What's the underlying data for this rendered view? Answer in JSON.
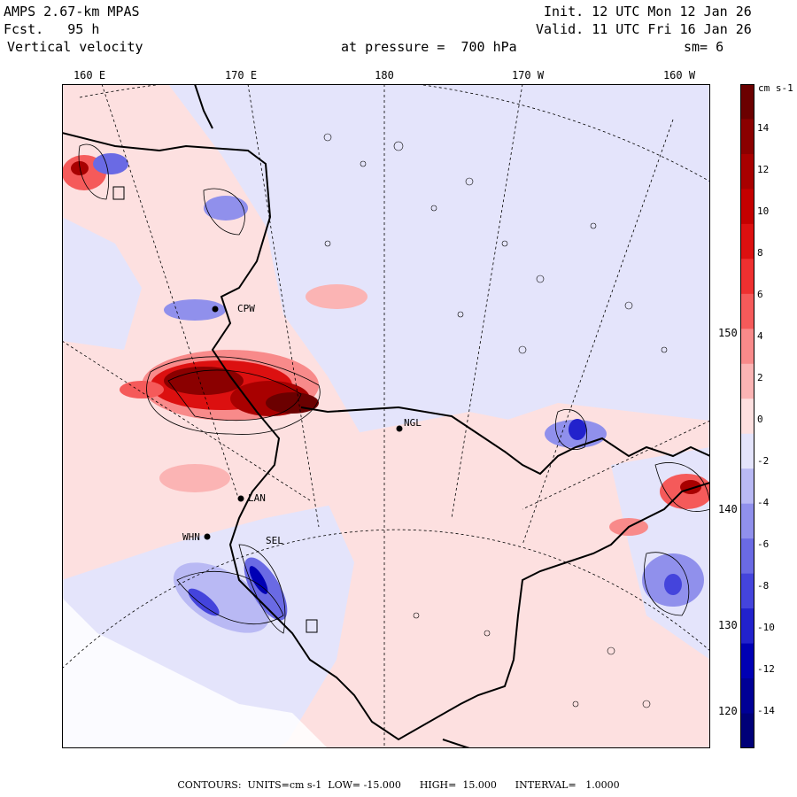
{
  "header": {
    "model": "AMPS 2.67-km MPAS",
    "forecast": "Fcst.   95 h",
    "field": "Vertical velocity",
    "init": "Init. 12 UTC Mon 12 Jan 26",
    "valid": "Valid. 11 UTC Fri 16 Jan 26",
    "level": "at pressure =  700 hPa",
    "smoothing": "sm= 6"
  },
  "longitude_labels": [
    "160 E",
    "170 E",
    "180",
    "170 W",
    "160 W"
  ],
  "latitude_labels": [
    "150 W",
    "140 W",
    "130 W",
    "120 W"
  ],
  "colorbar": {
    "units": "cm s-1",
    "ticks": [
      "14",
      "12",
      "10",
      "8",
      "6",
      "4",
      "2",
      "0",
      "-2",
      "-4",
      "-6",
      "-8",
      "-10",
      "-12",
      "-14"
    ],
    "colors": [
      "#6b0000",
      "#8b0000",
      "#a80000",
      "#c40000",
      "#dc1010",
      "#ee3030",
      "#f55a5a",
      "#f88a8a",
      "#fbb4b4",
      "#fde0e0",
      "#e4e4fb",
      "#b9b9f4",
      "#9090ec",
      "#6a6ae4",
      "#4444dc",
      "#2222cc",
      "#0000b4",
      "#000096",
      "#000078"
    ]
  },
  "stations": [
    {
      "label": "CPW"
    },
    {
      "label": "NGL"
    },
    {
      "label": "LAN"
    },
    {
      "label": "WHN"
    },
    {
      "label": "SEL"
    }
  ],
  "footer": "CONTOURS:  UNITS=cm s-1  LOW= -15.000      HIGH=  15.000      INTERVAL=   1.0000"
}
